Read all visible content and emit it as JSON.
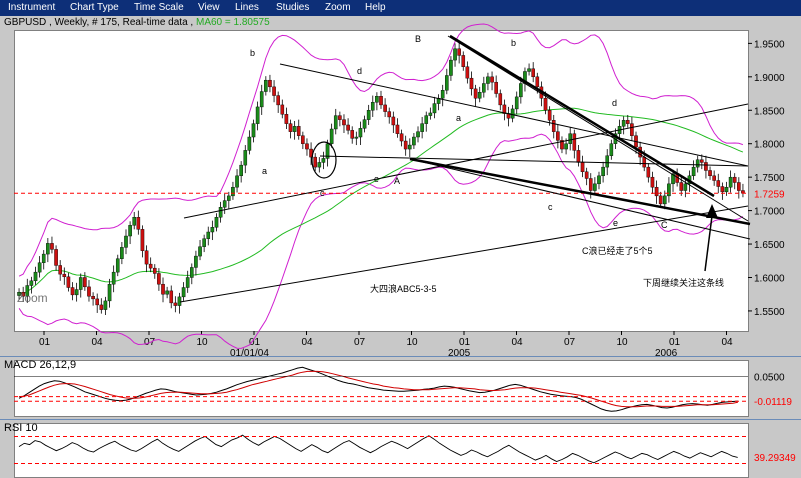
{
  "menu": [
    "Instrument",
    "Chart Type",
    "Time Scale",
    "View",
    "Lines",
    "Studies",
    "Zoom",
    "Help"
  ],
  "header": {
    "symbol": "GBPUSD",
    "period": "Weekly",
    "bars": "# 175",
    "feed": "Real-time data",
    "ma_label": "MA60 = 1.80575"
  },
  "chart_data": [
    {
      "type": "candlestick",
      "title": "GBPUSD , Weekly , # 175, Real-time data",
      "ylim": [
        1.52,
        1.97
      ],
      "y_ticks": [
        "1.9500",
        "1.9000",
        "1.8500",
        "1.8000",
        "1.7500",
        "1.7000",
        "1.6500",
        "1.6000",
        "1.5500"
      ],
      "x_tick_labels": [
        "01",
        "04",
        "07",
        "10",
        "01",
        "04",
        "07",
        "10",
        "01",
        "04",
        "07",
        "10",
        "01",
        "04"
      ],
      "x_sub_labels": [
        "01/01/04",
        "2005",
        "2006"
      ],
      "current_level": "1.7259",
      "closes": [
        1.578,
        1.572,
        1.588,
        1.595,
        1.608,
        1.622,
        1.635,
        1.651,
        1.642,
        1.618,
        1.605,
        1.601,
        1.585,
        1.574,
        1.582,
        1.6,
        1.586,
        1.572,
        1.568,
        1.559,
        1.552,
        1.565,
        1.59,
        1.608,
        1.628,
        1.645,
        1.662,
        1.678,
        1.69,
        1.672,
        1.64,
        1.62,
        1.614,
        1.606,
        1.59,
        1.575,
        1.58,
        1.562,
        1.558,
        1.571,
        1.585,
        1.6,
        1.615,
        1.632,
        1.646,
        1.658,
        1.668,
        1.675,
        1.69,
        1.705,
        1.715,
        1.722,
        1.735,
        1.752,
        1.768,
        1.79,
        1.81,
        1.83,
        1.855,
        1.878,
        1.895,
        1.885,
        1.872,
        1.858,
        1.844,
        1.83,
        1.818,
        1.826,
        1.812,
        1.8,
        1.792,
        1.78,
        1.765,
        1.772,
        1.778,
        1.8,
        1.822,
        1.842,
        1.836,
        1.828,
        1.82,
        1.808,
        1.81,
        1.823,
        1.836,
        1.85,
        1.862,
        1.871,
        1.858,
        1.848,
        1.84,
        1.828,
        1.815,
        1.804,
        1.792,
        1.798,
        1.81,
        1.818,
        1.83,
        1.842,
        1.846,
        1.86,
        1.868,
        1.88,
        1.902,
        1.925,
        1.942,
        1.932,
        1.915,
        1.898,
        1.882,
        1.868,
        1.877,
        1.89,
        1.9,
        1.892,
        1.875,
        1.858,
        1.845,
        1.838,
        1.852,
        1.87,
        1.89,
        1.908,
        1.912,
        1.9,
        1.885,
        1.868,
        1.85,
        1.835,
        1.818,
        1.805,
        1.792,
        1.8,
        1.815,
        1.79,
        1.772,
        1.758,
        1.748,
        1.73,
        1.74,
        1.752,
        1.765,
        1.782,
        1.8,
        1.815,
        1.826,
        1.835,
        1.83,
        1.812,
        1.795,
        1.78,
        1.765,
        1.75,
        1.735,
        1.722,
        1.71,
        1.722,
        1.74,
        1.755,
        1.742,
        1.73,
        1.74,
        1.752,
        1.765,
        1.776,
        1.772,
        1.76,
        1.752,
        1.745,
        1.736,
        1.728,
        1.735,
        1.75,
        1.742,
        1.73,
        1.726
      ]
    },
    {
      "type": "line",
      "title": "MACD 26,12,9",
      "ylim": [
        -0.05,
        0.09
      ],
      "y_ticks": [
        "0.0500"
      ],
      "current_level": "-0.01119",
      "series": [
        {
          "color": "#000000",
          "values": [
            -0.004,
            0.002,
            0.01,
            0.018,
            0.026,
            0.032,
            0.036,
            0.039,
            0.038,
            0.034,
            0.029,
            0.024,
            0.018,
            0.012,
            0.008,
            0.004,
            0.0,
            -0.004,
            -0.007,
            -0.009,
            -0.01,
            -0.009,
            -0.006,
            -0.002,
            0.003,
            0.008,
            0.012,
            0.016,
            0.019,
            0.018,
            0.015,
            0.012,
            0.01,
            0.008,
            0.006,
            0.004,
            0.005,
            0.006,
            0.008,
            0.011,
            0.015,
            0.019,
            0.024,
            0.029,
            0.033,
            0.037,
            0.04,
            0.043,
            0.046,
            0.049,
            0.052,
            0.055,
            0.058,
            0.062,
            0.066,
            0.07,
            0.072,
            0.068,
            0.064,
            0.06,
            0.055,
            0.05,
            0.045,
            0.04,
            0.036,
            0.033,
            0.031,
            0.028,
            0.025,
            0.022,
            0.02,
            0.018,
            0.016,
            0.015,
            0.014,
            0.013,
            0.013,
            0.014,
            0.015,
            0.016,
            0.018,
            0.019,
            0.021,
            0.024,
            0.026,
            0.025,
            0.023,
            0.02,
            0.017,
            0.014,
            0.012,
            0.01,
            0.011,
            0.013,
            0.016,
            0.02,
            0.024,
            0.028,
            0.03,
            0.028,
            0.024,
            0.02,
            0.016,
            0.012,
            0.009,
            0.006,
            0.004,
            0.002,
            0.001,
            0.0,
            -0.002,
            -0.006,
            -0.012,
            -0.018,
            -0.024,
            -0.03,
            -0.034,
            -0.036,
            -0.035,
            -0.032,
            -0.028,
            -0.025,
            -0.022,
            -0.02,
            -0.019,
            -0.021,
            -0.024,
            -0.027,
            -0.028,
            -0.026,
            -0.023,
            -0.02,
            -0.018,
            -0.017,
            -0.018,
            -0.02,
            -0.021,
            -0.019,
            -0.016,
            -0.014,
            -0.013,
            -0.012,
            -0.011
          ]
        },
        {
          "color": "#d00000",
          "values": [
            0.0,
            0.001,
            0.004,
            0.009,
            0.014,
            0.019,
            0.024,
            0.028,
            0.031,
            0.032,
            0.032,
            0.031,
            0.028,
            0.025,
            0.021,
            0.017,
            0.013,
            0.009,
            0.005,
            0.002,
            -0.001,
            -0.003,
            -0.004,
            -0.004,
            -0.003,
            -0.001,
            0.002,
            0.005,
            0.008,
            0.01,
            0.011,
            0.011,
            0.011,
            0.01,
            0.009,
            0.008,
            0.007,
            0.007,
            0.007,
            0.008,
            0.009,
            0.011,
            0.014,
            0.017,
            0.021,
            0.025,
            0.029,
            0.032,
            0.035,
            0.038,
            0.041,
            0.044,
            0.047,
            0.05,
            0.053,
            0.057,
            0.06,
            0.062,
            0.062,
            0.062,
            0.061,
            0.059,
            0.056,
            0.053,
            0.05,
            0.046,
            0.043,
            0.04,
            0.037,
            0.034,
            0.031,
            0.029,
            0.026,
            0.024,
            0.022,
            0.021,
            0.019,
            0.018,
            0.017,
            0.017,
            0.017,
            0.017,
            0.018,
            0.019,
            0.02,
            0.021,
            0.022,
            0.022,
            0.021,
            0.02,
            0.019,
            0.017,
            0.016,
            0.015,
            0.015,
            0.016,
            0.017,
            0.019,
            0.021,
            0.022,
            0.022,
            0.022,
            0.021,
            0.019,
            0.017,
            0.015,
            0.013,
            0.011,
            0.009,
            0.007,
            0.005,
            0.003,
            0.0,
            -0.003,
            -0.007,
            -0.011,
            -0.015,
            -0.019,
            -0.022,
            -0.024,
            -0.025,
            -0.025,
            -0.025,
            -0.024,
            -0.023,
            -0.023,
            -0.023,
            -0.024,
            -0.024,
            -0.024,
            -0.024,
            -0.023,
            -0.022,
            -0.021,
            -0.02,
            -0.02,
            -0.02,
            -0.02,
            -0.019,
            -0.018,
            -0.017,
            -0.016,
            -0.014
          ]
        }
      ]
    },
    {
      "type": "line",
      "title": "RSI 10",
      "ylim": [
        10,
        90
      ],
      "current_level": "39.29349",
      "series": [
        {
          "color": "#000000",
          "values": [
            55,
            60,
            58,
            64,
            62,
            57,
            53,
            49,
            52,
            56,
            61,
            58,
            53,
            49,
            47,
            52,
            56,
            60,
            63,
            58,
            54,
            50,
            48,
            52,
            57,
            62,
            66,
            60,
            55,
            51,
            48,
            53,
            58,
            63,
            67,
            70,
            64,
            58,
            55,
            60,
            65,
            68,
            72,
            66,
            61,
            57,
            62,
            66,
            70,
            67,
            62,
            57,
            52,
            48,
            53,
            58,
            54,
            49,
            46,
            51,
            56,
            61,
            64,
            59,
            54,
            50,
            46,
            50,
            55,
            59,
            63,
            60,
            56,
            52,
            57,
            62,
            67,
            71,
            66,
            60,
            55,
            50,
            46,
            42,
            45,
            50,
            47,
            43,
            40,
            44,
            48,
            53,
            57,
            52,
            47,
            43,
            39,
            35,
            38,
            42,
            37,
            33,
            36,
            40,
            45,
            42,
            38,
            34,
            31,
            35,
            39,
            43,
            47,
            44,
            40,
            37,
            41,
            45,
            43,
            39,
            36,
            40,
            44,
            48,
            45,
            41,
            38,
            42,
            46,
            43,
            40,
            44,
            48,
            45,
            41,
            39
          ]
        }
      ]
    }
  ],
  "annotations": {
    "labels_small": [
      "b",
      "d",
      "a",
      "c",
      "e",
      "A",
      "B",
      "b",
      "a",
      "c",
      "d",
      "e",
      "C"
    ],
    "chinese_note_1": "C浪已经走了5个5",
    "chinese_note_2": "大四浪ABC5-3-5",
    "chinese_note_3": "下周继续关注这条线",
    "watermark": "Zoom"
  },
  "colors": {
    "bull": "#1a8a1a",
    "bear": "#cc1010",
    "bollinger": "#d020d0",
    "ma": "#22bb22",
    "trend": "#000000",
    "level": "#ff0000"
  }
}
